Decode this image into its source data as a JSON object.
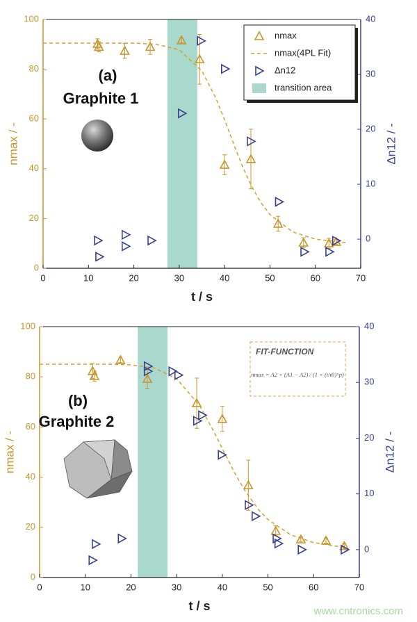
{
  "chart_data": [
    {
      "type": "scatter",
      "title": "(a)",
      "subtitle": "Graphite 1",
      "xlabel": "t / s",
      "ylabel": "nmax / -",
      "y2label": "Δn12 / -",
      "xlim": [
        0,
        70
      ],
      "xticks": [
        0,
        10,
        20,
        30,
        40,
        50,
        60,
        70
      ],
      "ylim": [
        0,
        100
      ],
      "yticks": [
        0,
        20,
        40,
        60,
        80,
        100
      ],
      "y2lim": [
        -5.3,
        40
      ],
      "y2ticks": [
        0,
        10,
        20,
        30,
        40
      ],
      "shaded": {
        "name": "transition area",
        "x": [
          27.4,
          34.0
        ],
        "color": "#a9d8cc"
      },
      "legend": "upper right",
      "series": [
        {
          "name": "nmax",
          "color": "#c9962c",
          "marker": "triangle-up",
          "x": [
            12,
            12.3,
            18,
            23.6,
            30.5,
            34.5,
            40,
            45.8,
            51.8,
            57.4,
            63,
            64.6
          ],
          "values": [
            90.2,
            89,
            87.4,
            89,
            91.6,
            84,
            41.6,
            43.9,
            17.9,
            10.3,
            10,
            10.6
          ],
          "errors": [
            2,
            2,
            3,
            3,
            1,
            10,
            4,
            12,
            3,
            2,
            2,
            1
          ]
        },
        {
          "name": "nmax(4PL Fit)",
          "color": "#d4a02e",
          "style": "dashed",
          "x": [
            0,
            5,
            10,
            15,
            20,
            25,
            30,
            35,
            38,
            40,
            42,
            44,
            46,
            48,
            50,
            55,
            60,
            67
          ],
          "values": [
            90.5,
            90.5,
            90.5,
            90.5,
            90.5,
            90.0,
            87.8,
            79.3,
            68.7,
            59.7,
            50.0,
            40.7,
            32.8,
            26.4,
            21.6,
            14.6,
            11.7,
            10.3
          ]
        },
        {
          "name": "Δn12",
          "color": "#3a4190",
          "marker": "triangle-right",
          "axis": "y2",
          "x": [
            12.1,
            12.4,
            18.2,
            18.2,
            23.9,
            30.6,
            34.8,
            40.1,
            45.8,
            52,
            57.6,
            63.1,
            64.6
          ],
          "values": [
            -0.25,
            -3.2,
            0.8,
            -1.3,
            -0.25,
            22.9,
            36.1,
            31,
            17.8,
            6.8,
            -2.3,
            -2.3,
            -0.3
          ]
        }
      ]
    },
    {
      "type": "scatter",
      "title": "(b)",
      "subtitle": "Graphite 2",
      "xlabel": "t / s",
      "ylabel": "nmax / -",
      "y2label": "Δn12 / -",
      "xlim": [
        0,
        70
      ],
      "xticks": [
        0,
        10,
        20,
        30,
        40,
        50,
        60,
        70
      ],
      "ylim": [
        0,
        100
      ],
      "yticks": [
        0,
        20,
        40,
        60,
        80,
        100
      ],
      "y2lim": [
        -5,
        40
      ],
      "y2ticks": [
        0,
        10,
        20,
        30,
        40
      ],
      "shaded": {
        "x": [
          21.5,
          28.0
        ],
        "color": "#a9d8cc"
      },
      "annotation": {
        "title": "FIT-FUNCTION",
        "formula": "nmax = A2 + (A1 − A2) / (1 + (t/t0)^p)"
      },
      "series": [
        {
          "color": "#c9962c",
          "marker": "triangle-up",
          "x": [
            11.6,
            12,
            17.7,
            23.6,
            34.4,
            40,
            45.7,
            51.7,
            57.2,
            62.7,
            66.7
          ],
          "values": [
            82.3,
            80.3,
            86.7,
            79.2,
            69.5,
            63.2,
            36.8,
            18.6,
            15.2,
            14.7,
            12.5
          ],
          "errors": [
            3,
            2,
            1,
            4,
            10,
            5,
            10,
            2,
            1,
            1,
            1
          ]
        },
        {
          "color": "#d4a02e",
          "style": "dashed",
          "x": [
            0,
            5,
            10,
            15,
            20,
            25,
            30,
            35,
            38,
            41,
            43,
            45,
            48,
            50,
            55,
            60,
            67
          ],
          "values": [
            85,
            85,
            85,
            85,
            84.8,
            83.6,
            79.3,
            68.6,
            58.7,
            47.8,
            40.7,
            34.5,
            26.9,
            23.1,
            17.0,
            13.9,
            11.9
          ]
        },
        {
          "color": "#3a4190",
          "marker": "triangle-right",
          "axis": "y2",
          "x": [
            11.6,
            12.3,
            18,
            23.7,
            23.7,
            29.1,
            30.4,
            34.5,
            35.6,
            39.9,
            45.8,
            47.3,
            51.9,
            52.3,
            57.4,
            66.8
          ],
          "values": [
            -1.9,
            1.0,
            2,
            32.9,
            32.0,
            32.0,
            31.3,
            23.1,
            24.1,
            17.0,
            8.0,
            6.0,
            2.0,
            1.1,
            0,
            0
          ]
        }
      ]
    }
  ],
  "watermark": "www.cntronics.com"
}
